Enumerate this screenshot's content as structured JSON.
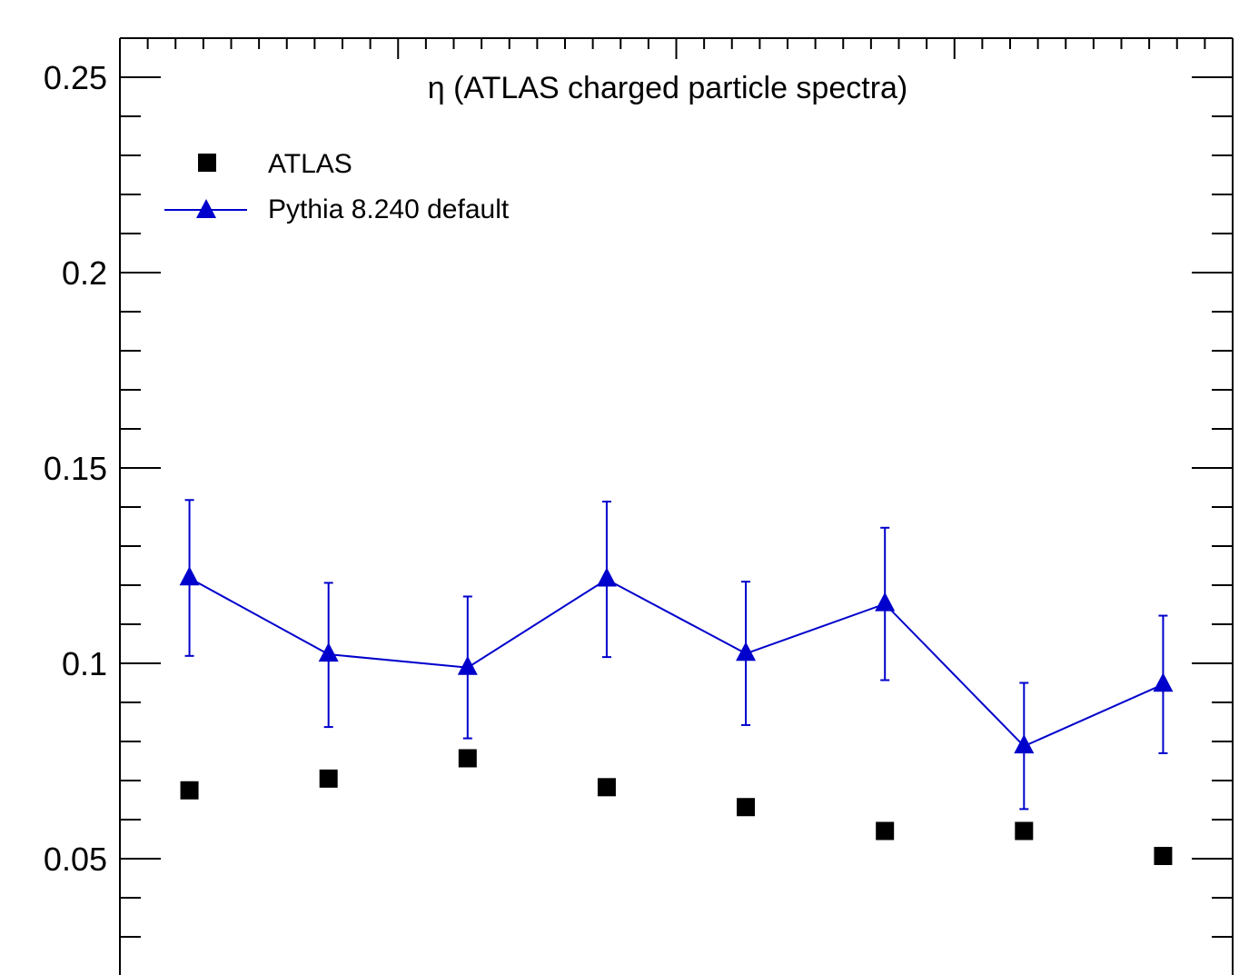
{
  "chart_data": {
    "type": "scatter",
    "title": "η (ATLAS charged particle spectra)",
    "xlabel": "",
    "ylabel": "",
    "xlim": [
      0,
      8
    ],
    "ylim": [
      0.02,
      0.265
    ],
    "x": [
      0.5,
      1.5,
      2.5,
      3.5,
      4.5,
      5.5,
      6.5,
      7.5
    ],
    "yticks": [
      {
        "value": 0.05,
        "label": "0.05"
      },
      {
        "value": 0.1,
        "label": "0.1"
      },
      {
        "value": 0.15,
        "label": "0.15"
      },
      {
        "value": 0.2,
        "label": "0.2"
      },
      {
        "value": 0.25,
        "label": "0.25"
      }
    ],
    "grid": false,
    "legend_position": "top-left",
    "series": [
      {
        "name": "ATLAS",
        "marker": "square",
        "color": "#000000",
        "values": [
          0.0675,
          0.0705,
          0.0757,
          0.0683,
          0.0632,
          0.0571,
          0.0571,
          0.0507
        ]
      },
      {
        "name": "Pythia 8.240 default",
        "marker": "triangle",
        "line": true,
        "color": "#0000cc",
        "values": [
          0.1218,
          0.1023,
          0.0989,
          0.1215,
          0.1025,
          0.1152,
          0.0788,
          0.0946
        ],
        "err_low": [
          0.1019,
          0.0837,
          0.0808,
          0.1016,
          0.0842,
          0.0957,
          0.0627,
          0.077
        ],
        "err_high": [
          0.1418,
          0.1206,
          0.1171,
          0.1414,
          0.1209,
          0.1347,
          0.095,
          0.1122
        ]
      }
    ]
  }
}
